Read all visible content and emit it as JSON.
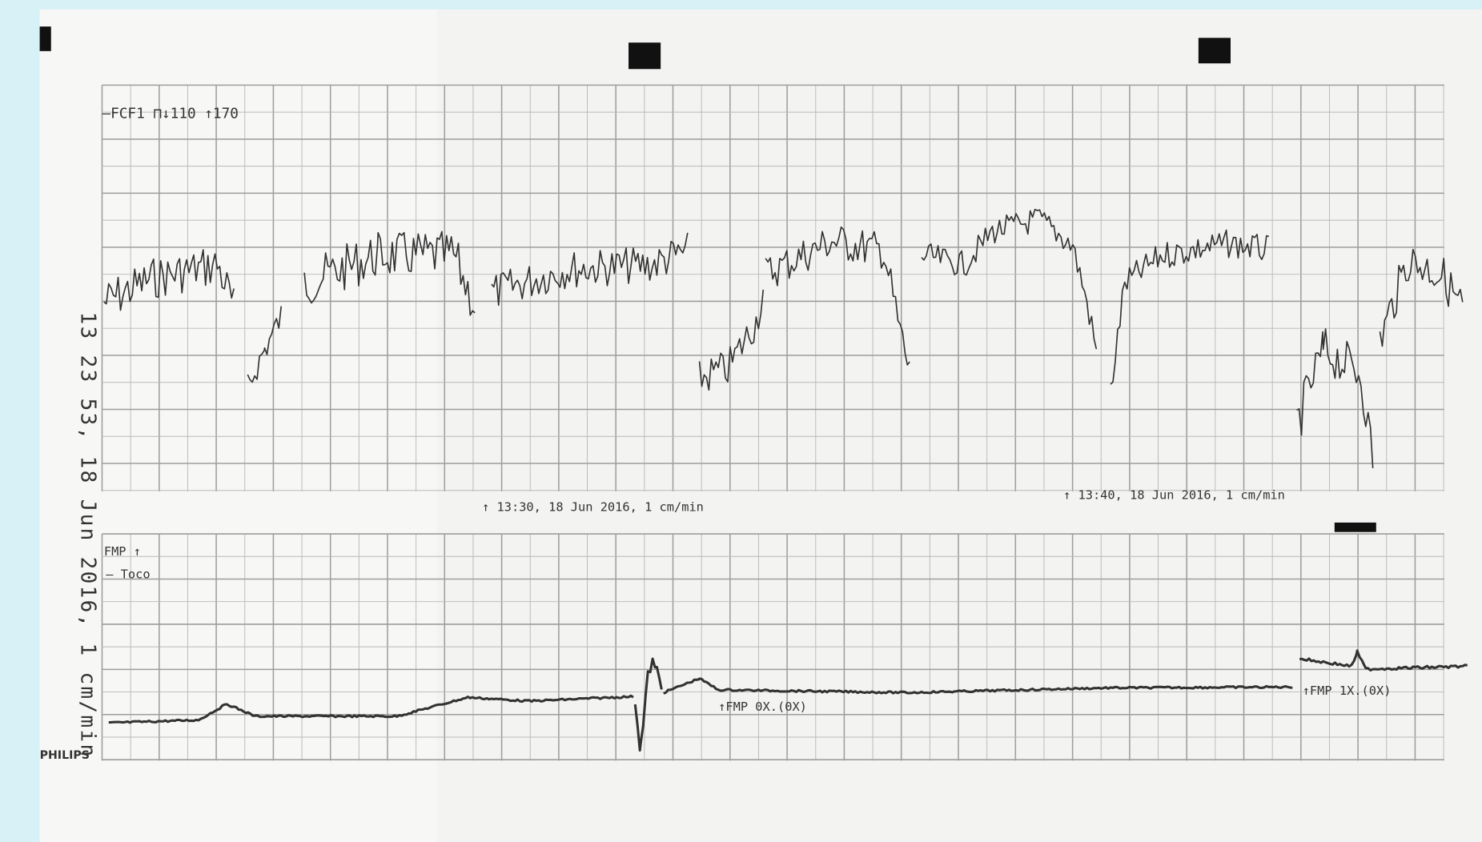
{
  "header": {
    "fhr_legend": "—FCF1 ⊓↓110 ↑170",
    "side_stamp": "13 23 53, 18 Jun 2016, 1 cm/min"
  },
  "annotations": [
    "↑ 13:30, 18 Jun 2016, 1 cm/min",
    "↑ 13:40, 18 Jun 2016, 1 cm/min"
  ],
  "toco_legend": {
    "fmp": "FMP ↑",
    "toco": "— Toco"
  },
  "events": [
    "↑FMP 0X.(0X)",
    "↑FMP 1X.(0X)"
  ],
  "brand": "PHILIPS"
}
